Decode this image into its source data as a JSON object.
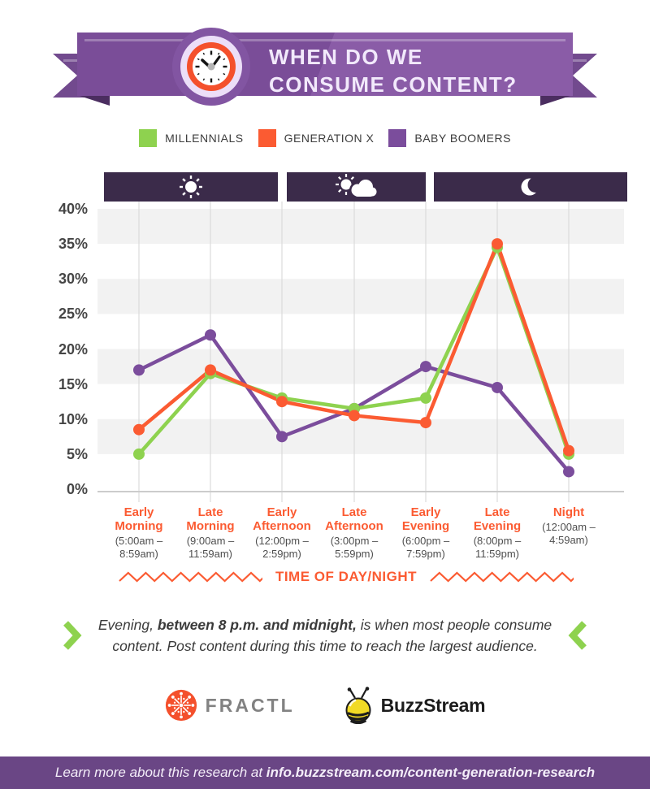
{
  "palette": {
    "green": "#8ed24f",
    "orange": "#fb5b32",
    "purple": "#7b4d9c",
    "banner_purple": "#7a4d98",
    "band_dark": "#3b2b4a",
    "footer_purple": "#6a4685",
    "stripe_gray": "#f2f2f2"
  },
  "header": {
    "title_line1": "WHEN DO WE",
    "title_line2": "CONSUME CONTENT?",
    "icon": "clock-icon"
  },
  "legend": [
    {
      "label": "MILLENNIALS",
      "color": "#8ed24f"
    },
    {
      "label": "GENERATION X",
      "color": "#fb5b32"
    },
    {
      "label": "BABY BOOMERS",
      "color": "#7b4d9c"
    }
  ],
  "chart_data": {
    "type": "line",
    "title": "When do we consume content?",
    "categories": [
      "Early Morning",
      "Late Morning",
      "Early Afternoon",
      "Late Afternoon",
      "Early Evening",
      "Late Evening",
      "Night"
    ],
    "category_times": [
      "(5:00am – 8:59am)",
      "(9:00am – 11:59am)",
      "(12:00pm – 2:59pm)",
      "(3:00pm – 5:59pm)",
      "(6:00pm – 7:59pm)",
      "(8:00pm – 11:59pm)",
      "(12:00am – 4:59am)"
    ],
    "series": [
      {
        "name": "Millennials",
        "color": "#8ed24f",
        "values": [
          5,
          16.5,
          13,
          11.5,
          13,
          34.5,
          5
        ]
      },
      {
        "name": "Generation X",
        "color": "#fb5b32",
        "values": [
          8.5,
          17,
          12.5,
          10.5,
          9.5,
          35,
          5.5
        ]
      },
      {
        "name": "Baby Boomers",
        "color": "#7b4d9c",
        "values": [
          17,
          22,
          7.5,
          11.5,
          17.5,
          14.5,
          2.5
        ]
      }
    ],
    "ylim": [
      0,
      40
    ],
    "ytick_values": [
      40,
      35,
      30,
      25,
      20,
      15,
      10,
      5,
      0
    ],
    "ytick_labels": [
      "40%",
      "35%",
      "30%",
      "25%",
      "20%",
      "15%",
      "10%",
      "5%",
      "0%"
    ],
    "xlabel": "TIME OF DAY/NIGHT",
    "grid": "vertical gridlines with alternating horizontal gray bands",
    "legend_position": "top",
    "day_periods": [
      {
        "name": "morning",
        "icon": "sun-icon"
      },
      {
        "name": "afternoon",
        "icon": "sun-cloud-icon"
      },
      {
        "name": "evening-night",
        "icon": "moon-icon"
      }
    ]
  },
  "callout": {
    "pre": "Evening, ",
    "bold": "between 8 p.m. and midnight,",
    "post": " is when most people consume content. Post content during this time to reach the largest audience."
  },
  "logos": {
    "fractl": "FRACTL",
    "buzzstream": "BuzzStream"
  },
  "footer": {
    "pre": "Learn more about this research at ",
    "url": "info.buzzstream.com/content-generation-research"
  }
}
